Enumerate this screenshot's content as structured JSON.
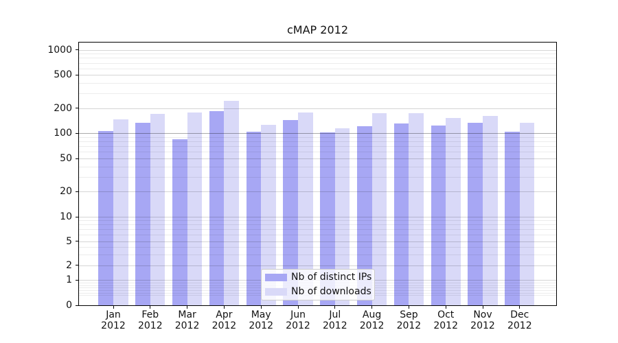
{
  "chart_data": {
    "type": "bar",
    "title": "cMAP 2012",
    "categories": [
      "Jan 2012",
      "Feb 2012",
      "Mar 2012",
      "Apr 2012",
      "May 2012",
      "Jun 2012",
      "Jul 2012",
      "Aug 2012",
      "Sep 2012",
      "Oct 2012",
      "Nov 2012",
      "Dec 2012"
    ],
    "series": [
      {
        "name": "Nb of distinct IPs",
        "key": "distinct-ips",
        "color": "#a7a7f4",
        "values": [
          107,
          133,
          85,
          186,
          104,
          143,
          102,
          121,
          132,
          124,
          134,
          105
        ]
      },
      {
        "name": "Nb of downloads",
        "key": "downloads",
        "color": "#d9d9f8",
        "values": [
          146,
          171,
          177,
          243,
          126,
          178,
          114,
          175,
          174,
          153,
          161,
          134
        ]
      }
    ],
    "y_axis": {
      "scale": "symlog",
      "ticks": [
        0,
        1,
        2,
        5,
        10,
        20,
        50,
        100,
        200,
        500,
        1000
      ],
      "minor_ticks": [
        0.4,
        0.5,
        0.6,
        0.7,
        0.8,
        0.9,
        3,
        4,
        6,
        7,
        8,
        9,
        30,
        40,
        60,
        70,
        80,
        90,
        300,
        400,
        600,
        700,
        800,
        900
      ],
      "emphasized_gridline": 100,
      "ylim": [
        0,
        1250
      ]
    },
    "x_axis": {
      "label_line2": "2012"
    },
    "legend": {
      "position": "lower-center",
      "entries": [
        "Nb of distinct IPs",
        "Nb of downloads"
      ]
    },
    "grid": true,
    "background_color": "#ffffff"
  }
}
